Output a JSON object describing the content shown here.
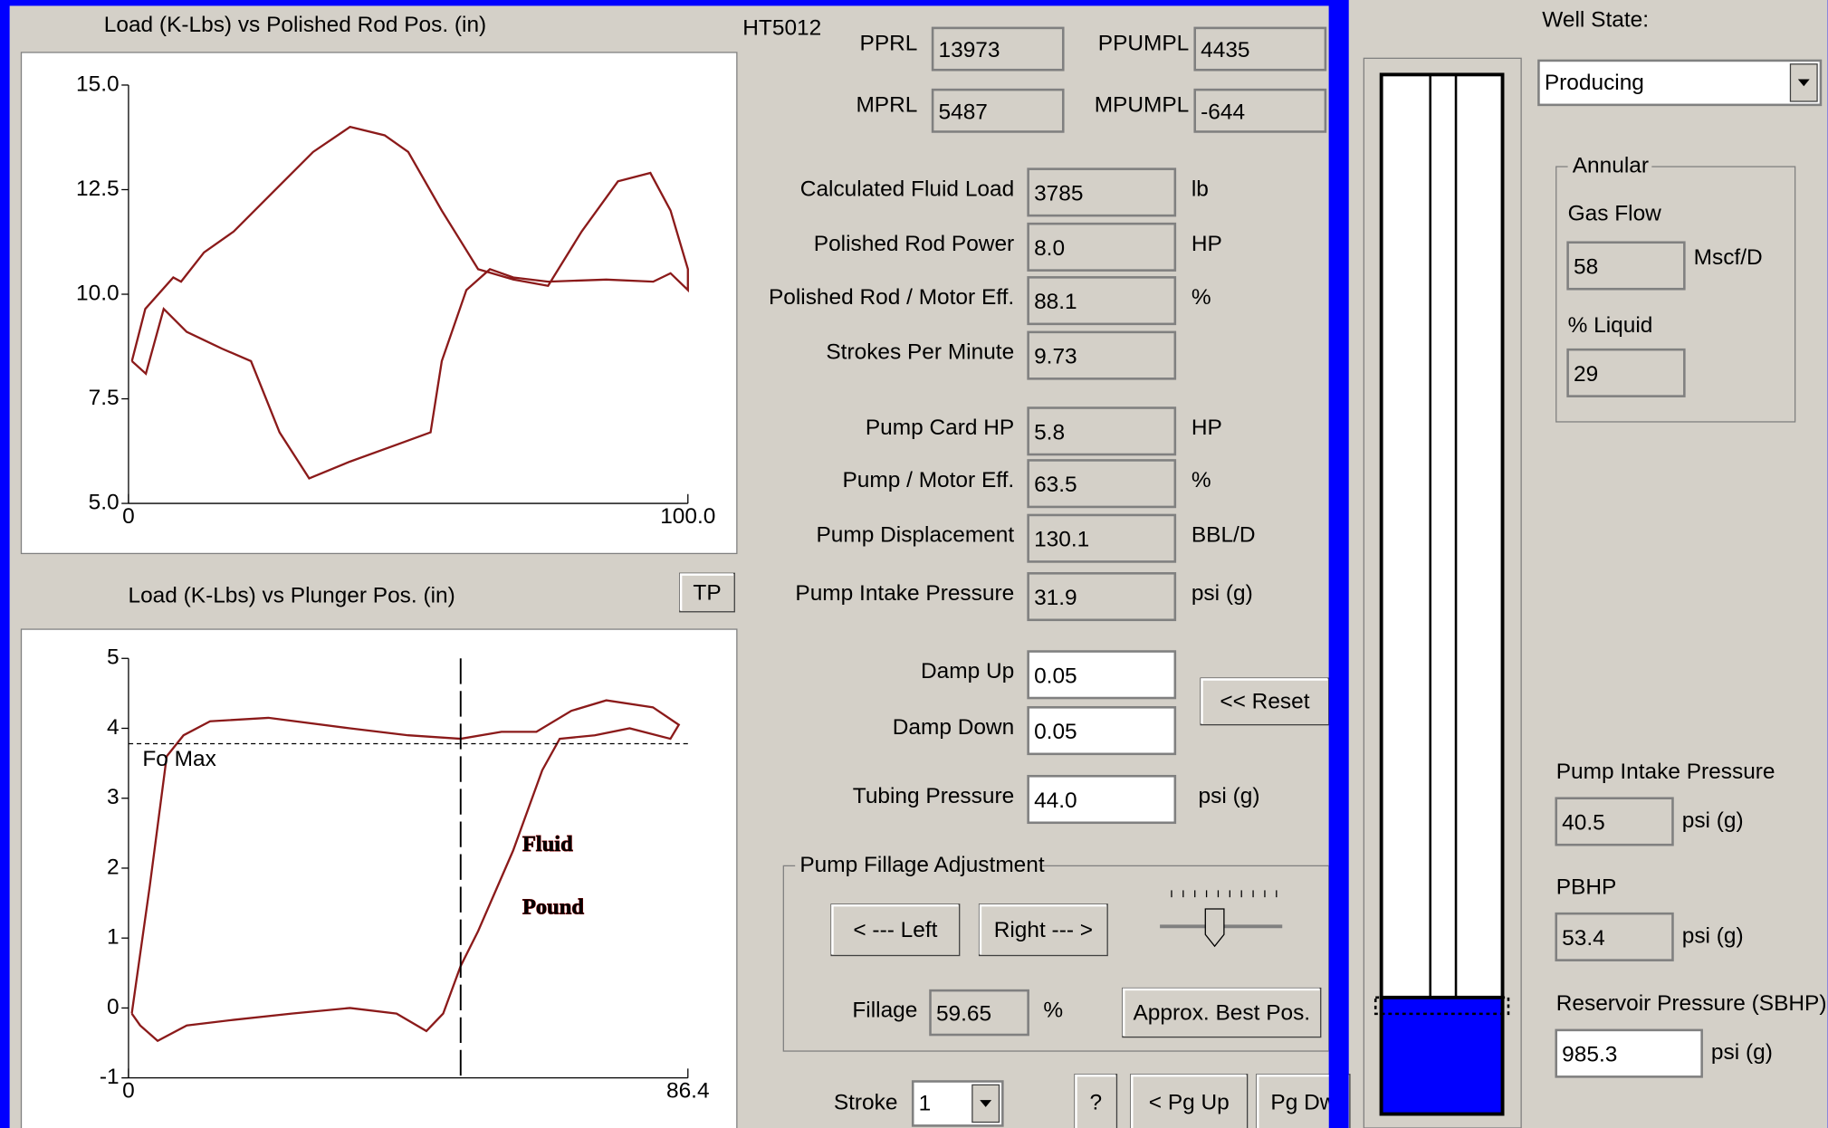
{
  "top_chart": {
    "type": "line",
    "title": "Load (K-Lbs) vs Polished Rod Pos. (in)",
    "xlim": [
      0,
      100
    ],
    "xticks": [
      0,
      {
        "value": 100,
        "label": "100.0"
      }
    ],
    "ylim": [
      5,
      15
    ],
    "yticks": [
      {
        "value": 5,
        "label": "5.0"
      },
      7.5,
      {
        "value": 10,
        "label": "10.0"
      },
      12.5,
      {
        "value": 15,
        "label": "15.0"
      }
    ],
    "series": [
      {
        "color": "#8b1a1a",
        "x": [
          0.6,
          3,
          8,
          9.4,
          13.5,
          18.8,
          27,
          33,
          39.6,
          45.8,
          50,
          56,
          62.5,
          68.8,
          75,
          81,
          87.5,
          93.3,
          96.9,
          100,
          100,
          96.9,
          93.8,
          85.4,
          75,
          68.8,
          64.6,
          60.4,
          56,
          54,
          47.9,
          39.6,
          32.3,
          27,
          21.9,
          16.7,
          10.4,
          6.3,
          3.1,
          0.6
        ],
        "values": [
          8.4,
          9.65,
          10.4,
          10.3,
          11,
          11.5,
          12.6,
          13.4,
          14,
          13.8,
          13.4,
          12,
          10.6,
          10.35,
          10.2,
          11.5,
          12.7,
          12.9,
          12,
          10.6,
          10.1,
          10.5,
          10.3,
          10.35,
          10.3,
          10.4,
          10.6,
          10.1,
          8.4,
          6.7,
          6.4,
          6,
          5.6,
          6.7,
          8.4,
          8.7,
          9.1,
          9.65,
          8.1,
          8.4
        ]
      }
    ]
  },
  "bottom_chart": {
    "type": "line",
    "title": "Load (K-Lbs) vs Plunger Pos. (in)",
    "button": "TP",
    "xlim": [
      0,
      86.4
    ],
    "xticks": [
      0,
      86.4
    ],
    "ylim": [
      -1,
      5
    ],
    "yticks": [
      -1,
      0,
      1,
      2,
      3,
      4,
      5
    ],
    "fo_max": {
      "label": "Fo Max",
      "value": 3.78
    },
    "marker_x": 51.3,
    "annotation": [
      "Fluid",
      "Pound"
    ],
    "series": [
      {
        "color": "#8b1a1a",
        "x": [
          0.5,
          3.3,
          5.9,
          8.5,
          12.6,
          21.6,
          34.2,
          43.2,
          51.3,
          57.6,
          63,
          68.4,
          73.8,
          81,
          85,
          83.7,
          77.4,
          72,
          66.6,
          63.9,
          59.4,
          54,
          51.3,
          48.6,
          46,
          41.4,
          34.2,
          25.2,
          16.2,
          9,
          4.5,
          1.8,
          0.5
        ],
        "values": [
          -0.08,
          1.75,
          3.6,
          3.9,
          4.1,
          4.15,
          4,
          3.9,
          3.85,
          3.95,
          3.95,
          4.25,
          4.4,
          4.3,
          4.05,
          3.85,
          4,
          3.9,
          3.85,
          3.4,
          2.25,
          1.1,
          0.6,
          -0.08,
          -0.33,
          -0.08,
          0,
          -0.08,
          -0.17,
          -0.25,
          -0.47,
          -0.25,
          -0.08
        ]
      }
    ]
  },
  "well_id": "HT5012",
  "rod_loads": [
    {
      "label": "PPRL",
      "value": "13973"
    },
    {
      "label": "PPUMPL",
      "value": "4435"
    },
    {
      "label": "MPRL",
      "value": "5487"
    },
    {
      "label": "MPUMPL",
      "value": "-644"
    }
  ],
  "calculated": [
    {
      "label": "Calculated Fluid Load",
      "value": "3785",
      "unit": "lb"
    },
    {
      "label": "Polished Rod Power",
      "value": "8.0",
      "unit": "HP"
    },
    {
      "label": "Polished Rod / Motor Eff.",
      "value": "88.1",
      "unit": "%"
    },
    {
      "label": "Strokes Per Minute",
      "value": "9.73"
    }
  ],
  "pump": [
    {
      "label": "Pump Card HP",
      "value": "5.8",
      "unit": "HP"
    },
    {
      "label": "Pump / Motor Eff.",
      "value": "63.5",
      "unit": "%"
    },
    {
      "label": "Pump Displacement",
      "value": "130.1",
      "unit": "BBL/D"
    },
    {
      "label": "Pump Intake Pressure",
      "value": "31.9",
      "unit": "psi (g)"
    }
  ],
  "damping": [
    {
      "label": "Damp Up",
      "value": "0.05"
    },
    {
      "label": "Damp Down",
      "value": "0.05"
    },
    {
      "label": "Tubing Pressure",
      "value": "44.0",
      "unit": "psi (g)"
    }
  ],
  "reset_button": "<< Reset",
  "fillage": {
    "title": "Pump Fillage Adjustment",
    "left_button": "< --- Left",
    "right_button": "Right --- >",
    "label": "Fillage",
    "value": "59.65",
    "unit": "%",
    "best_button": "Approx. Best Pos."
  },
  "stroke": {
    "label": "Stroke",
    "value": "1"
  },
  "nav_buttons": [
    "?",
    "< Pg Up",
    "Pg Dw"
  ],
  "well_state": {
    "label": "Well State:",
    "value": "Producing"
  },
  "annular": {
    "title": "Annular",
    "gas_flow": {
      "label": "Gas Flow",
      "value": "58",
      "unit": "Mscf/D"
    },
    "liquid": {
      "label": "% Liquid",
      "value": "29"
    }
  },
  "pressures": [
    {
      "label": "Pump Intake Pressure",
      "value": "40.5",
      "unit": "psi (g)"
    },
    {
      "label": "PBHP",
      "value": "53.4",
      "unit": "psi (g)"
    },
    {
      "label": "Reservoir Pressure (SBHP)",
      "value": "985.3",
      "unit": "psi (g)"
    }
  ]
}
